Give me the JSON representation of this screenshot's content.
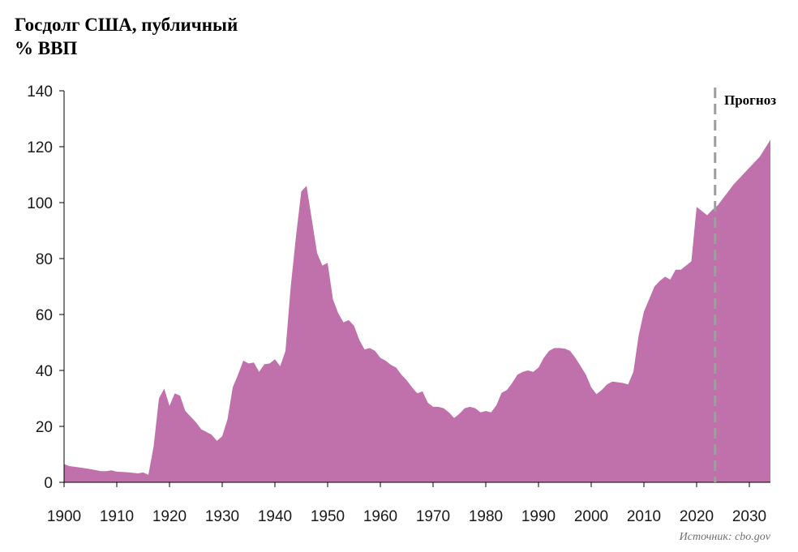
{
  "title_line1": "Госдолг США, публичный",
  "title_line2": "% ВВП",
  "forecast_label": "Прогноз",
  "source": "Источник: cbo.gov",
  "colors": {
    "area": "#c071ab",
    "axis": "#000000",
    "forecast_line": "#9e9e9e"
  },
  "chart_data": {
    "type": "area",
    "title": "Госдолг США, публичный",
    "ylabel": "% ВВП",
    "xlim": [
      1900,
      2034
    ],
    "ylim": [
      0,
      140
    ],
    "x_ticks": [
      1900,
      1910,
      1920,
      1930,
      1940,
      1950,
      1960,
      1970,
      1980,
      1990,
      2000,
      2010,
      2020,
      2030
    ],
    "y_ticks": [
      0,
      20,
      40,
      60,
      80,
      100,
      120,
      140
    ],
    "forecast_start": 2023.5,
    "grid": false,
    "points": [
      [
        1900,
        6.5
      ],
      [
        1901,
        5.8
      ],
      [
        1903,
        5.3
      ],
      [
        1905,
        4.7
      ],
      [
        1907,
        4.0
      ],
      [
        1908,
        4.0
      ],
      [
        1909,
        4.3
      ],
      [
        1910,
        3.8
      ],
      [
        1912,
        3.6
      ],
      [
        1913,
        3.4
      ],
      [
        1914,
        3.2
      ],
      [
        1915,
        3.5
      ],
      [
        1916,
        2.7
      ],
      [
        1917,
        13.0
      ],
      [
        1918,
        30.0
      ],
      [
        1919,
        33.5
      ],
      [
        1920,
        27.3
      ],
      [
        1921,
        31.8
      ],
      [
        1922,
        31.0
      ],
      [
        1923,
        25.5
      ],
      [
        1924,
        23.5
      ],
      [
        1925,
        21.5
      ],
      [
        1926,
        19.0
      ],
      [
        1927,
        18.0
      ],
      [
        1928,
        17.0
      ],
      [
        1929,
        14.8
      ],
      [
        1930,
        16.5
      ],
      [
        1931,
        22.5
      ],
      [
        1932,
        34.0
      ],
      [
        1933,
        38.5
      ],
      [
        1934,
        43.5
      ],
      [
        1935,
        42.5
      ],
      [
        1936,
        42.8
      ],
      [
        1937,
        39.5
      ],
      [
        1938,
        42.2
      ],
      [
        1939,
        42.5
      ],
      [
        1940,
        44.0
      ],
      [
        1941,
        41.5
      ],
      [
        1942,
        47.0
      ],
      [
        1943,
        70.0
      ],
      [
        1944,
        88.0
      ],
      [
        1945,
        104.0
      ],
      [
        1946,
        106.0
      ],
      [
        1947,
        94.0
      ],
      [
        1948,
        82.0
      ],
      [
        1949,
        77.5
      ],
      [
        1950,
        78.5
      ],
      [
        1951,
        65.5
      ],
      [
        1952,
        60.5
      ],
      [
        1953,
        57.2
      ],
      [
        1954,
        58.0
      ],
      [
        1955,
        56.0
      ],
      [
        1956,
        51.0
      ],
      [
        1957,
        47.5
      ],
      [
        1958,
        48.0
      ],
      [
        1959,
        47.0
      ],
      [
        1960,
        44.5
      ],
      [
        1961,
        43.5
      ],
      [
        1962,
        42.0
      ],
      [
        1963,
        41.0
      ],
      [
        1964,
        38.5
      ],
      [
        1965,
        36.5
      ],
      [
        1966,
        34.0
      ],
      [
        1967,
        31.8
      ],
      [
        1968,
        32.5
      ],
      [
        1969,
        28.5
      ],
      [
        1970,
        27.0
      ],
      [
        1971,
        27.0
      ],
      [
        1972,
        26.5
      ],
      [
        1973,
        25.0
      ],
      [
        1974,
        23.0
      ],
      [
        1975,
        24.5
      ],
      [
        1976,
        26.5
      ],
      [
        1977,
        27.0
      ],
      [
        1978,
        26.5
      ],
      [
        1979,
        25.0
      ],
      [
        1980,
        25.5
      ],
      [
        1981,
        25.0
      ],
      [
        1982,
        27.5
      ],
      [
        1983,
        32.0
      ],
      [
        1984,
        33.0
      ],
      [
        1985,
        35.5
      ],
      [
        1986,
        38.5
      ],
      [
        1987,
        39.5
      ],
      [
        1988,
        40.0
      ],
      [
        1989,
        39.5
      ],
      [
        1990,
        41.0
      ],
      [
        1991,
        44.5
      ],
      [
        1992,
        47.0
      ],
      [
        1993,
        48.0
      ],
      [
        1994,
        48.0
      ],
      [
        1995,
        47.8
      ],
      [
        1996,
        47.0
      ],
      [
        1997,
        44.5
      ],
      [
        1998,
        41.5
      ],
      [
        1999,
        38.5
      ],
      [
        2000,
        34.0
      ],
      [
        2001,
        31.5
      ],
      [
        2002,
        33.0
      ],
      [
        2003,
        35.0
      ],
      [
        2004,
        36.0
      ],
      [
        2005,
        35.8
      ],
      [
        2006,
        35.5
      ],
      [
        2007,
        35.0
      ],
      [
        2008,
        39.5
      ],
      [
        2009,
        52.5
      ],
      [
        2010,
        61.0
      ],
      [
        2011,
        65.5
      ],
      [
        2012,
        70.0
      ],
      [
        2013,
        72.0
      ],
      [
        2014,
        73.5
      ],
      [
        2015,
        72.5
      ],
      [
        2016,
        76.0
      ],
      [
        2017,
        76.0
      ],
      [
        2018,
        77.5
      ],
      [
        2019,
        79.0
      ],
      [
        2020,
        98.5
      ],
      [
        2021,
        97.0
      ],
      [
        2022,
        95.5
      ],
      [
        2023,
        97.5
      ],
      [
        2024,
        99.0
      ],
      [
        2025,
        101.5
      ],
      [
        2026,
        104.0
      ],
      [
        2027,
        106.5
      ],
      [
        2028,
        108.5
      ],
      [
        2029,
        110.5
      ],
      [
        2030,
        112.5
      ],
      [
        2031,
        114.5
      ],
      [
        2032,
        116.5
      ],
      [
        2033,
        119.5
      ],
      [
        2034,
        122.5
      ]
    ]
  }
}
